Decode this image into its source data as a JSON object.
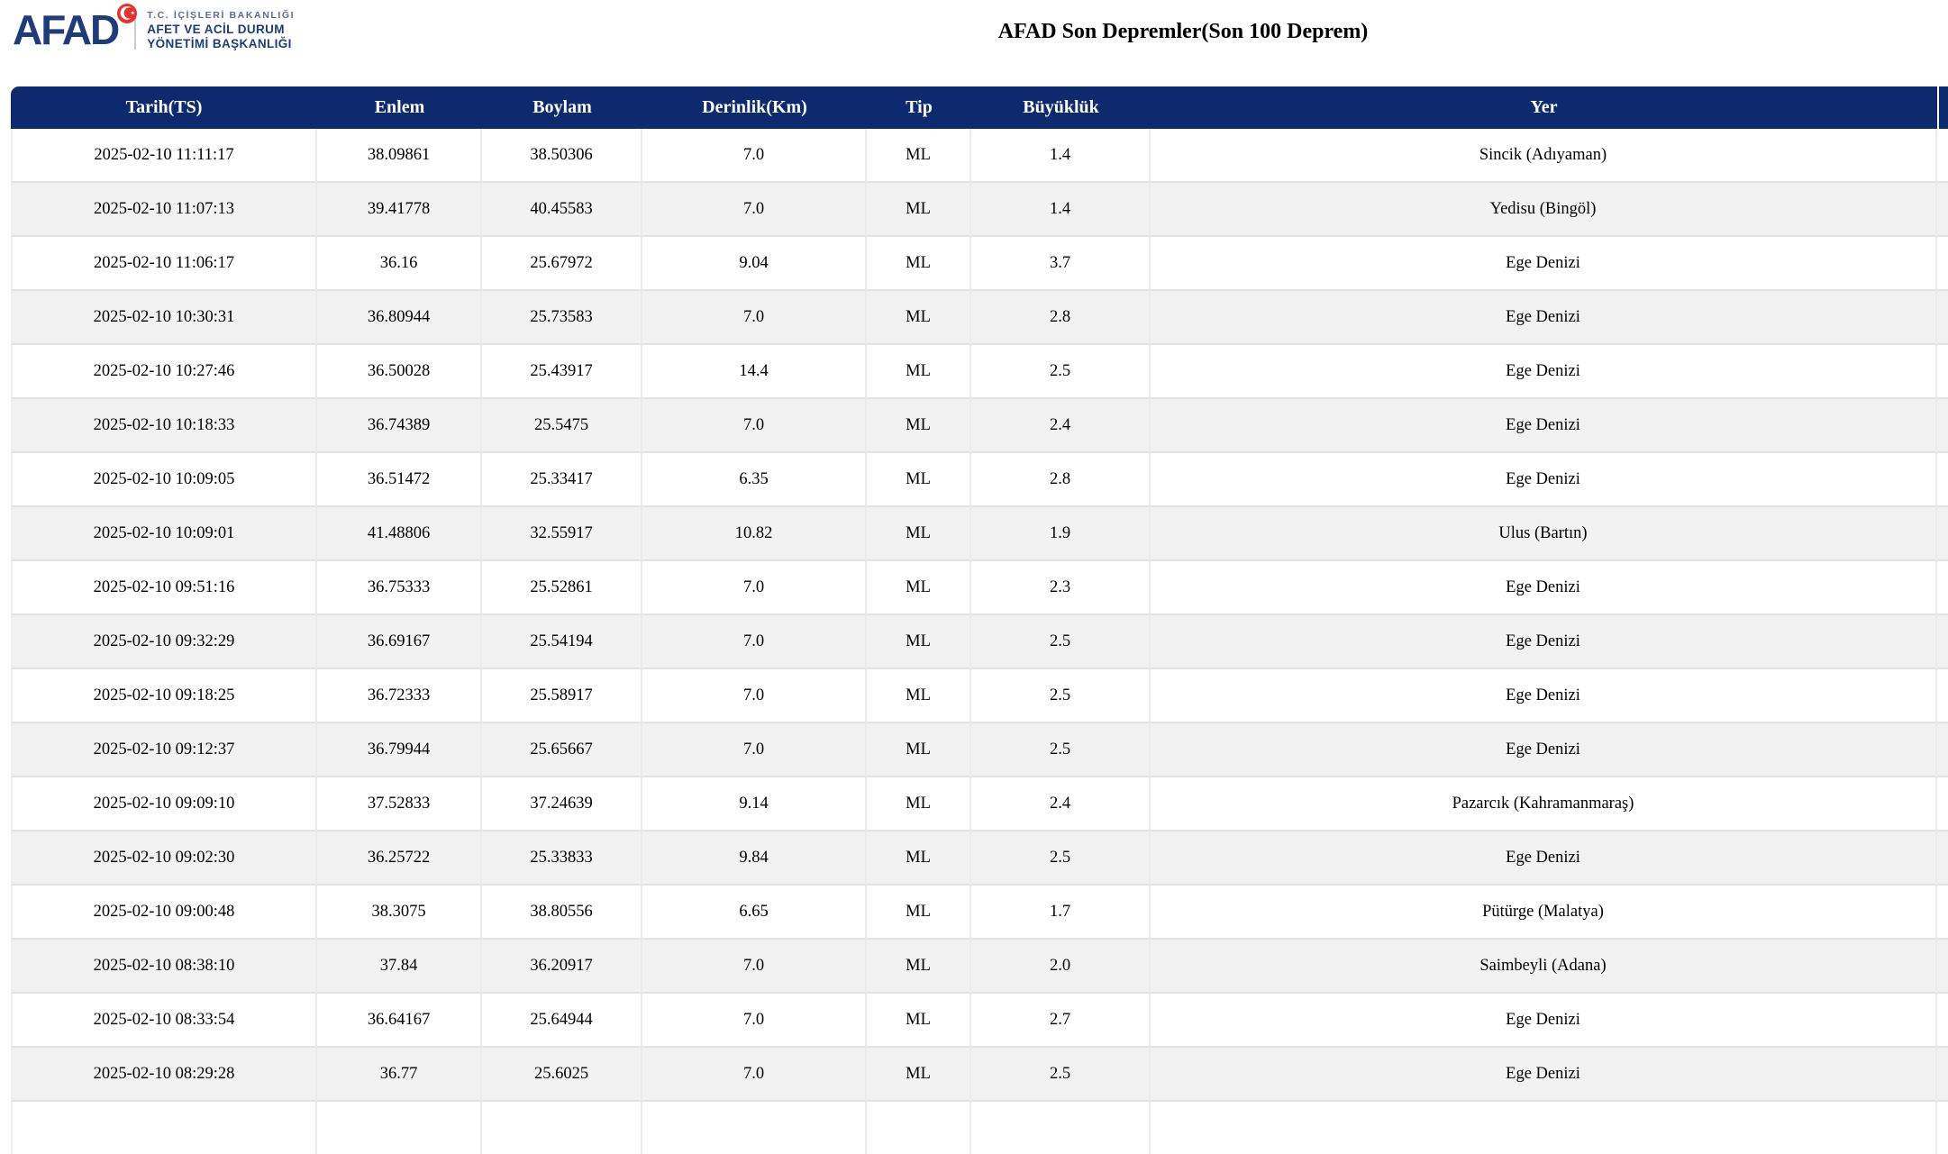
{
  "brand": {
    "wordmark": "AFAD",
    "ministry_line1": "T.C. İÇİŞLERİ BAKANLIĞI",
    "ministry_line2": "AFET VE ACİL DURUM",
    "ministry_line3": "YÖNETİMİ BAŞKANLIĞI",
    "crescent_icon": "crescent-star-icon"
  },
  "title": "AFAD Son Depremler(Son 100 Deprem)",
  "colors": {
    "table_header_bg": "#0e2a6e",
    "logo_blue": "#1e3c7c",
    "crescent_red": "#e8312a",
    "row_alt_bg": "#f2f2f2",
    "row_border": "#e3e3e3"
  },
  "table": {
    "headers": [
      "Tarih(TS)",
      "Enlem",
      "Boylam",
      "Derinlik(Km)",
      "Tip",
      "Büyüklük",
      "Yer"
    ],
    "rows": [
      [
        "2025-02-10 11:11:17",
        "38.09861",
        "38.50306",
        "7.0",
        "ML",
        "1.4",
        "Sincik (Adıyaman)"
      ],
      [
        "2025-02-10 11:07:13",
        "39.41778",
        "40.45583",
        "7.0",
        "ML",
        "1.4",
        "Yedisu (Bingöl)"
      ],
      [
        "2025-02-10 11:06:17",
        "36.16",
        "25.67972",
        "9.04",
        "ML",
        "3.7",
        "Ege Denizi"
      ],
      [
        "2025-02-10 10:30:31",
        "36.80944",
        "25.73583",
        "7.0",
        "ML",
        "2.8",
        "Ege Denizi"
      ],
      [
        "2025-02-10 10:27:46",
        "36.50028",
        "25.43917",
        "14.4",
        "ML",
        "2.5",
        "Ege Denizi"
      ],
      [
        "2025-02-10 10:18:33",
        "36.74389",
        "25.5475",
        "7.0",
        "ML",
        "2.4",
        "Ege Denizi"
      ],
      [
        "2025-02-10 10:09:05",
        "36.51472",
        "25.33417",
        "6.35",
        "ML",
        "2.8",
        "Ege Denizi"
      ],
      [
        "2025-02-10 10:09:01",
        "41.48806",
        "32.55917",
        "10.82",
        "ML",
        "1.9",
        "Ulus (Bartın)"
      ],
      [
        "2025-02-10 09:51:16",
        "36.75333",
        "25.52861",
        "7.0",
        "ML",
        "2.3",
        "Ege Denizi"
      ],
      [
        "2025-02-10 09:32:29",
        "36.69167",
        "25.54194",
        "7.0",
        "ML",
        "2.5",
        "Ege Denizi"
      ],
      [
        "2025-02-10 09:18:25",
        "36.72333",
        "25.58917",
        "7.0",
        "ML",
        "2.5",
        "Ege Denizi"
      ],
      [
        "2025-02-10 09:12:37",
        "36.79944",
        "25.65667",
        "7.0",
        "ML",
        "2.5",
        "Ege Denizi"
      ],
      [
        "2025-02-10 09:09:10",
        "37.52833",
        "37.24639",
        "9.14",
        "ML",
        "2.4",
        "Pazarcık (Kahramanmaraş)"
      ],
      [
        "2025-02-10 09:02:30",
        "36.25722",
        "25.33833",
        "9.84",
        "ML",
        "2.5",
        "Ege Denizi"
      ],
      [
        "2025-02-10 09:00:48",
        "38.3075",
        "38.80556",
        "6.65",
        "ML",
        "1.7",
        "Pütürge (Malatya)"
      ],
      [
        "2025-02-10 08:38:10",
        "37.84",
        "36.20917",
        "7.0",
        "ML",
        "2.0",
        "Saimbeyli (Adana)"
      ],
      [
        "2025-02-10 08:33:54",
        "36.64167",
        "25.64944",
        "7.0",
        "ML",
        "2.7",
        "Ege Denizi"
      ],
      [
        "2025-02-10 08:29:28",
        "36.77",
        "25.6025",
        "7.0",
        "ML",
        "2.5",
        "Ege Denizi"
      ]
    ]
  }
}
